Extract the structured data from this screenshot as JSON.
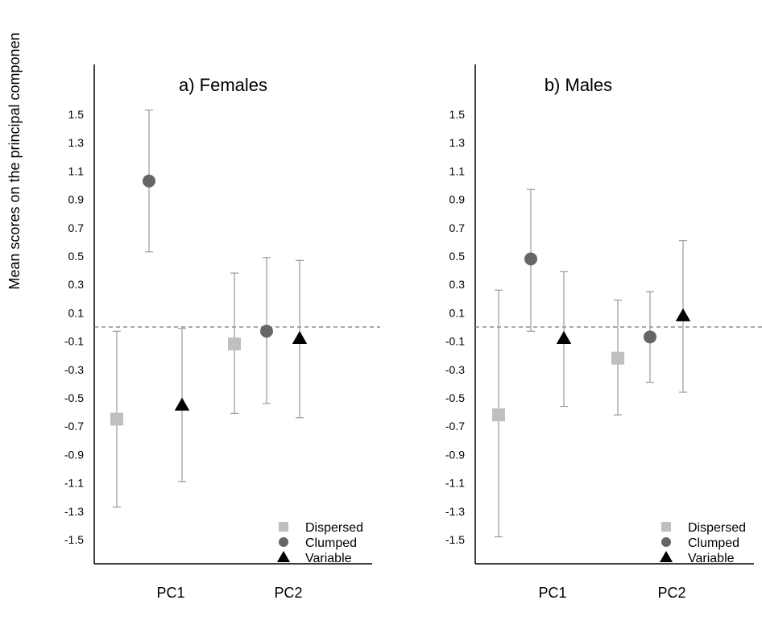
{
  "chart_data": {
    "type": "scatter",
    "ylabel": "Mean scores on the principal componen",
    "ylim": [
      -1.5,
      1.5
    ],
    "yticks": [
      1.5,
      1.3,
      1.1,
      0.9,
      0.7,
      0.5,
      0.3,
      0.1,
      -0.1,
      -0.3,
      -0.5,
      -0.7,
      -0.9,
      -1.1,
      -1.3,
      -1.5
    ],
    "ytick_labels": [
      "1.5",
      "1.3",
      "1.1",
      "0.9",
      "0.7",
      "0.5",
      "0.3",
      "0.1",
      "-0.1",
      "-0.3",
      "-0.5",
      "-0.7",
      "-0.9",
      "-1.1",
      "-1.3",
      "-1.5"
    ],
    "reference_line": 0.0,
    "categories": [
      "PC1",
      "PC2"
    ],
    "legend_position": "bottom-right",
    "series_styles": [
      {
        "name": "Dispersed",
        "marker": "square",
        "color": "#bfbfbf"
      },
      {
        "name": "Clumped",
        "marker": "circle",
        "color": "#666666"
      },
      {
        "name": "Variable",
        "marker": "triangle",
        "color": "#000000"
      }
    ],
    "errorbar_color": "#999999",
    "panels": [
      {
        "title": "a) Females",
        "series": [
          {
            "name": "Dispersed",
            "points": [
              {
                "category": "PC1",
                "mean": -0.65,
                "lower": -1.27,
                "upper": -0.03
              },
              {
                "category": "PC2",
                "mean": -0.12,
                "lower": -0.61,
                "upper": 0.38
              }
            ]
          },
          {
            "name": "Clumped",
            "points": [
              {
                "category": "PC1",
                "mean": 1.03,
                "lower": 0.53,
                "upper": 1.53
              },
              {
                "category": "PC2",
                "mean": -0.03,
                "lower": -0.54,
                "upper": 0.49
              }
            ]
          },
          {
            "name": "Variable",
            "points": [
              {
                "category": "PC1",
                "mean": -0.55,
                "lower": -1.09,
                "upper": -0.01
              },
              {
                "category": "PC2",
                "mean": -0.08,
                "lower": -0.64,
                "upper": 0.47
              }
            ]
          }
        ]
      },
      {
        "title": "b) Males",
        "series": [
          {
            "name": "Dispersed",
            "points": [
              {
                "category": "PC1",
                "mean": -0.62,
                "lower": -1.48,
                "upper": 0.26
              },
              {
                "category": "PC2",
                "mean": -0.22,
                "lower": -0.62,
                "upper": 0.19
              }
            ]
          },
          {
            "name": "Clumped",
            "points": [
              {
                "category": "PC1",
                "mean": 0.48,
                "lower": -0.03,
                "upper": 0.97
              },
              {
                "category": "PC2",
                "mean": -0.07,
                "lower": -0.39,
                "upper": 0.25
              }
            ]
          },
          {
            "name": "Variable",
            "points": [
              {
                "category": "PC1",
                "mean": -0.08,
                "lower": -0.56,
                "upper": 0.39
              },
              {
                "category": "PC2",
                "mean": 0.08,
                "lower": -0.46,
                "upper": 0.61
              }
            ]
          }
        ]
      }
    ]
  }
}
